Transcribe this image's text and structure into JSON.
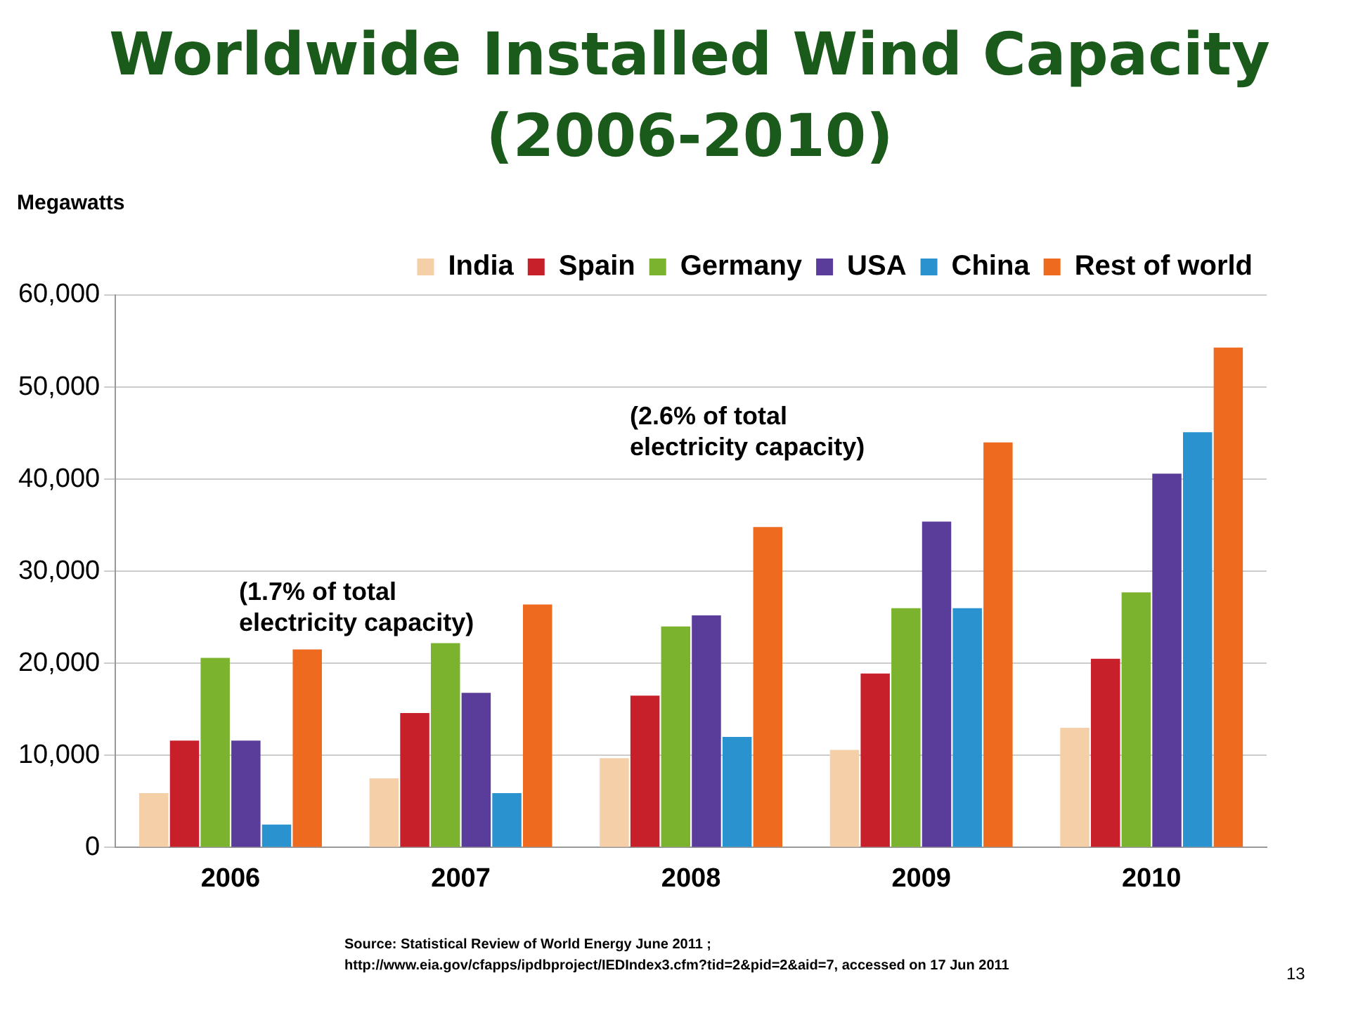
{
  "chart_data": {
    "type": "bar",
    "title": "Worldwide Installed Wind Capacity\n(2006-2010)",
    "ylabel": "Megawatts",
    "categories": [
      "2006",
      "2007",
      "2008",
      "2009",
      "2010"
    ],
    "series": [
      {
        "name": "India",
        "color": "#f5cfa8",
        "values": [
          5900,
          7500,
          9700,
          10600,
          13000
        ]
      },
      {
        "name": "Spain",
        "color": "#c8202a",
        "values": [
          11600,
          14600,
          16500,
          18900,
          20500
        ]
      },
      {
        "name": "Germany",
        "color": "#7bb32e",
        "values": [
          20600,
          22200,
          24000,
          26000,
          27700
        ]
      },
      {
        "name": "USA",
        "color": "#5a3d9a",
        "values": [
          11600,
          16800,
          25200,
          35400,
          40600
        ]
      },
      {
        "name": "China",
        "color": "#2a93cf",
        "values": [
          2500,
          5900,
          12000,
          26000,
          45100
        ]
      },
      {
        "name": "Rest of world",
        "color": "#ee6a1f",
        "values": [
          21500,
          26400,
          34800,
          44000,
          54300
        ]
      }
    ],
    "ylim": [
      0,
      60000
    ],
    "yticks": [
      0,
      {
        "value": 10000,
        "label": "10,000"
      },
      {
        "value": 20000,
        "label": "20,000"
      },
      {
        "value": 30000,
        "label": "30,000"
      },
      {
        "value": 40000,
        "label": "40,000"
      },
      {
        "value": 50000,
        "label": "50,000"
      },
      {
        "value": 60000,
        "label": "60,000"
      }
    ],
    "grid": "y",
    "legend": "top",
    "annotations": [
      "(1.7% of total\nelectricity capacity)",
      "(2.6% of total\nelectricity capacity)",
      "Source: Statistical Review of World Energy June 2011 ;\nhttp://www.eia.gov/cfapps/ipdbproject/IEDIndex3.cfm?tid=2&pid=2&aid=7, accessed on 17 Jun 2011",
      "13"
    ]
  }
}
